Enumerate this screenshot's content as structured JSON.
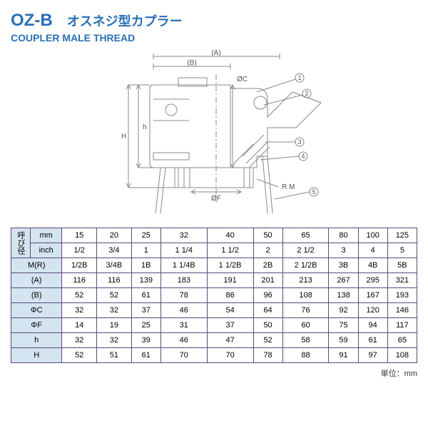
{
  "header": {
    "model": "OZ-B",
    "jp_title": "オスネジ型カプラー",
    "en_title": "COUPLER MALE THREAD"
  },
  "diagram": {
    "labels": {
      "A": "(A)",
      "B": "(B)",
      "C": "ØC",
      "F": "ØF",
      "h": "h",
      "H": "H",
      "RM": "R M"
    },
    "callouts": [
      "1",
      "2",
      "3",
      "4",
      "5"
    ],
    "stroke": "#888888",
    "body_fill": "#ffffff",
    "line_width": 1
  },
  "table": {
    "group_label": "呼び径",
    "rows": [
      {
        "label": "mm",
        "cells": [
          "15",
          "20",
          "25",
          "32",
          "40",
          "50",
          "65",
          "80",
          "100",
          "125"
        ]
      },
      {
        "label": "inch",
        "cells": [
          "1/2",
          "3/4",
          "1",
          "1 1/4",
          "1 1/2",
          "2",
          "2 1/2",
          "3",
          "4",
          "5"
        ]
      },
      {
        "label": "M(R)",
        "cells": [
          "1/2B",
          "3/4B",
          "1B",
          "1 1/4B",
          "1 1/2B",
          "2B",
          "2 1/2B",
          "3B",
          "4B",
          "5B"
        ]
      },
      {
        "label": "(A)",
        "cells": [
          "116",
          "116",
          "139",
          "183",
          "191",
          "201",
          "213",
          "267",
          "295",
          "321"
        ]
      },
      {
        "label": "(B)",
        "cells": [
          "52",
          "52",
          "61",
          "78",
          "86",
          "96",
          "108",
          "138",
          "167",
          "193"
        ]
      },
      {
        "label": "ΦC",
        "cells": [
          "32",
          "32",
          "37",
          "46",
          "54",
          "64",
          "76",
          "92",
          "120",
          "146"
        ]
      },
      {
        "label": "ΦF",
        "cells": [
          "14",
          "19",
          "25",
          "31",
          "37",
          "50",
          "60",
          "75",
          "94",
          "117"
        ]
      },
      {
        "label": "h",
        "cells": [
          "32",
          "32",
          "39",
          "46",
          "47",
          "52",
          "58",
          "59",
          "61",
          "65"
        ]
      },
      {
        "label": "H",
        "cells": [
          "52",
          "51",
          "61",
          "70",
          "70",
          "78",
          "88",
          "91",
          "97",
          "108"
        ]
      }
    ],
    "unit_label": "単位：mm",
    "header_bg": "#d4e4f0",
    "border_color": "#5a4a7a"
  }
}
